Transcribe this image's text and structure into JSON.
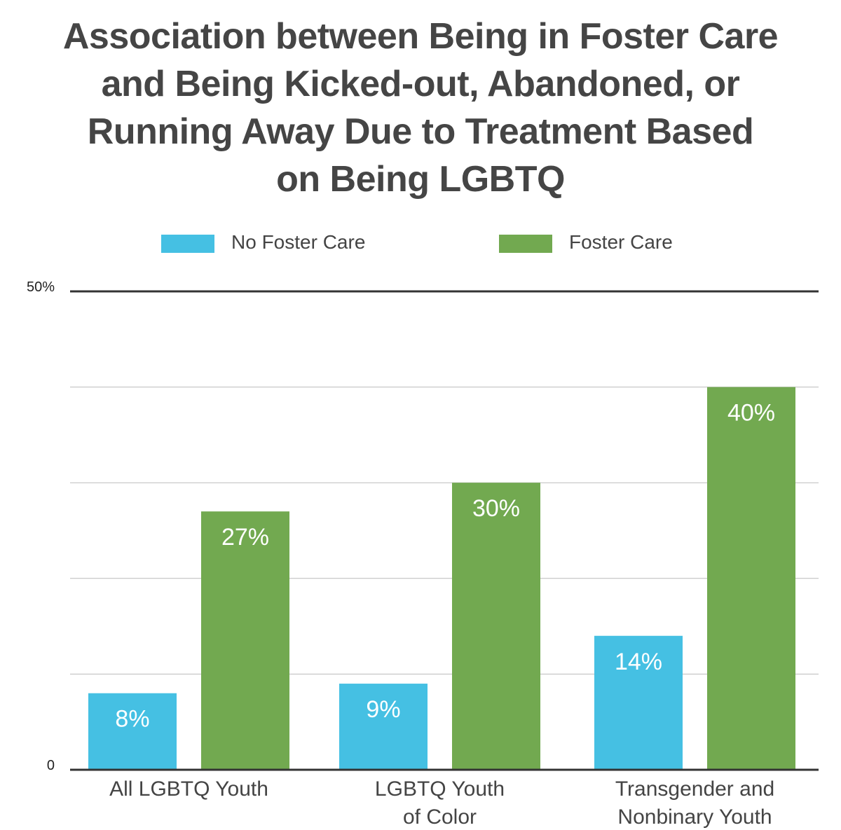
{
  "chart_data": {
    "type": "bar",
    "title_lines": [
      "Association between Being in Foster Care",
      "and Being Kicked-out, Abandoned, or",
      "Running Away Due to Treatment Based",
      "on Being LGBTQ"
    ],
    "categories": [
      [
        "All LGBTQ Youth"
      ],
      [
        "LGBTQ Youth",
        "of Color"
      ],
      [
        "Transgender and",
        "Nonbinary Youth"
      ]
    ],
    "series": [
      {
        "name": "No Foster Care",
        "color": "#45C0E3",
        "values": [
          8,
          9,
          14
        ],
        "labels": [
          "8%",
          "9%",
          "14%"
        ]
      },
      {
        "name": "Foster Care",
        "color": "#72A950",
        "values": [
          27,
          30,
          40
        ],
        "labels": [
          "27%",
          "30%",
          "40%"
        ]
      }
    ],
    "ylim": [
      0,
      50
    ],
    "y_tick_labels": {
      "max": "50%",
      "min": "0"
    },
    "gridlines": [
      10,
      20,
      30,
      40
    ],
    "legend_position": "top-center"
  }
}
